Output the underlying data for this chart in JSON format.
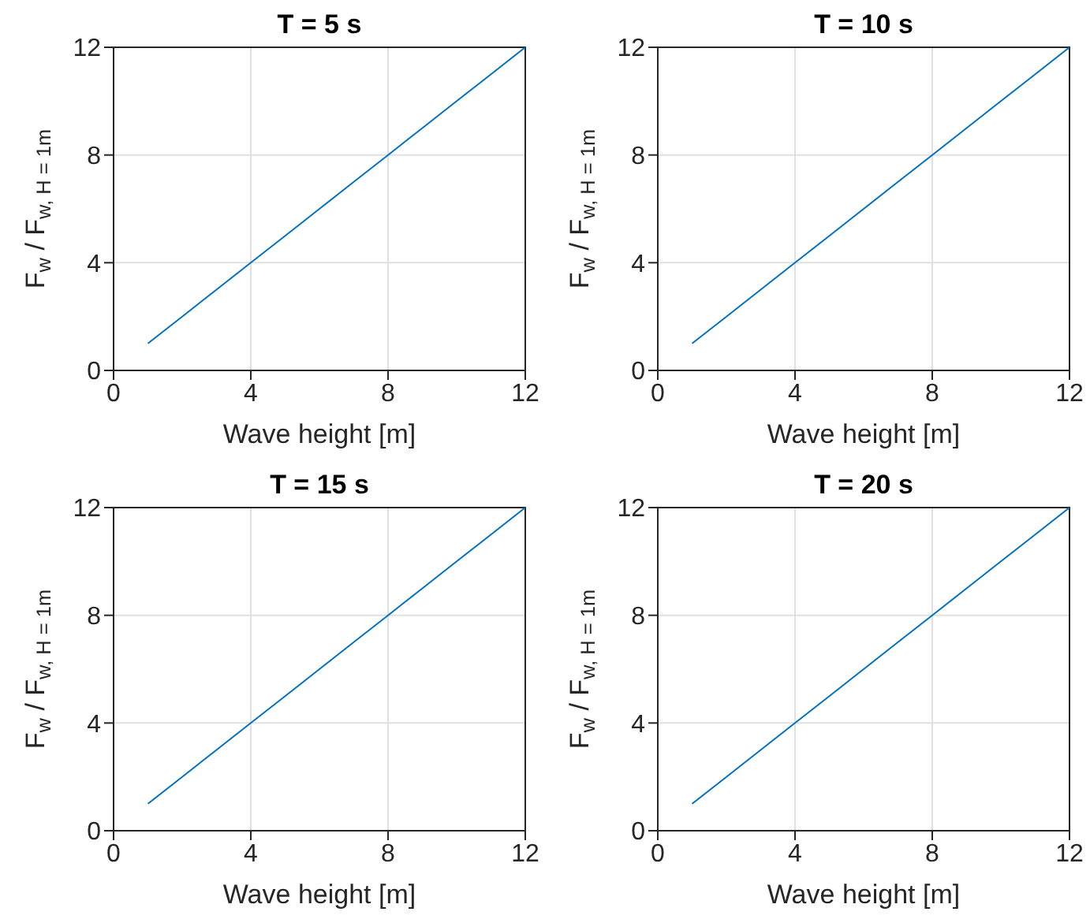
{
  "chart_data": [
    {
      "type": "line",
      "title": "T = 5 s",
      "xlabel": "Wave height [m]",
      "ylabel": "F$_{w}$ / F$_{w, H = 1m}$",
      "x": [
        1,
        2,
        3,
        4,
        5,
        6,
        7,
        8,
        9,
        10,
        11,
        12
      ],
      "series": [
        {
          "color": "#0072bd",
          "values": [
            1,
            2,
            3,
            4,
            5,
            6,
            7,
            8,
            9,
            10,
            11,
            12
          ]
        }
      ],
      "xlim": [
        0,
        12
      ],
      "ylim": [
        0,
        12
      ],
      "xticks": [
        0,
        4,
        8,
        12
      ],
      "yticks": [
        0,
        4,
        8,
        12
      ],
      "grid": true
    },
    {
      "type": "line",
      "title": "T = 10 s",
      "xlabel": "Wave height [m]",
      "ylabel": "F$_{w}$ / F$_{w, H = 1m}$",
      "x": [
        1,
        2,
        3,
        4,
        5,
        6,
        7,
        8,
        9,
        10,
        11,
        12
      ],
      "series": [
        {
          "color": "#0072bd",
          "values": [
            1,
            2,
            3,
            4,
            5,
            6,
            7,
            8,
            9,
            10,
            11,
            12
          ]
        }
      ],
      "xlim": [
        0,
        12
      ],
      "ylim": [
        0,
        12
      ],
      "xticks": [
        0,
        4,
        8,
        12
      ],
      "yticks": [
        0,
        4,
        8,
        12
      ],
      "grid": true
    },
    {
      "type": "line",
      "title": "T = 15 s",
      "xlabel": "Wave height [m]",
      "ylabel": "F$_{w}$ / F$_{w, H = 1m}$",
      "x": [
        1,
        2,
        3,
        4,
        5,
        6,
        7,
        8,
        9,
        10,
        11,
        12
      ],
      "series": [
        {
          "color": "#0072bd",
          "values": [
            1,
            2,
            3,
            4,
            5,
            6,
            7,
            8,
            9,
            10,
            11,
            12
          ]
        }
      ],
      "xlim": [
        0,
        12
      ],
      "ylim": [
        0,
        12
      ],
      "xticks": [
        0,
        4,
        8,
        12
      ],
      "yticks": [
        0,
        4,
        8,
        12
      ],
      "grid": true
    },
    {
      "type": "line",
      "title": "T = 20 s",
      "xlabel": "Wave height [m]",
      "ylabel": "F$_{w}$ / F$_{w, H = 1m}$",
      "x": [
        1,
        2,
        3,
        4,
        5,
        6,
        7,
        8,
        9,
        10,
        11,
        12
      ],
      "series": [
        {
          "color": "#0072bd",
          "values": [
            1,
            2,
            3,
            4,
            5,
            6,
            7,
            8,
            9,
            10,
            11,
            12
          ]
        }
      ],
      "xlim": [
        0,
        12
      ],
      "ylim": [
        0,
        12
      ],
      "xticks": [
        0,
        4,
        8,
        12
      ],
      "yticks": [
        0,
        4,
        8,
        12
      ],
      "grid": true
    }
  ]
}
